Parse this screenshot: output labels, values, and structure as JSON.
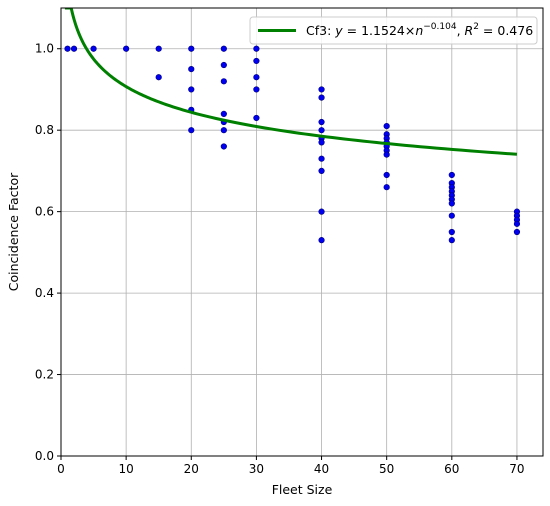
{
  "chart_data": {
    "type": "scatter",
    "xlabel": "Fleet Size",
    "ylabel": "Coincidence Factor",
    "xlim": [
      0,
      74
    ],
    "ylim": [
      0,
      1.1
    ],
    "x_ticks": [
      0,
      10,
      20,
      30,
      40,
      50,
      60,
      70
    ],
    "y_ticks": [
      0.0,
      0.2,
      0.4,
      0.6,
      0.8,
      1.0
    ],
    "x_tick_labels": [
      "0",
      "10",
      "20",
      "30",
      "40",
      "50",
      "60",
      "70"
    ],
    "y_tick_labels": [
      "0.0",
      "0.2",
      "0.4",
      "0.6",
      "0.8",
      "1.0"
    ],
    "grid": true,
    "legend_position": "top-right",
    "colors": {
      "points": "#0000ee",
      "points_edge": "#000080",
      "fit": "#008000",
      "grid": "#b0b0b0"
    },
    "series": [
      {
        "type": "scatter",
        "points": [
          [
            1,
            1.0
          ],
          [
            2,
            1.0
          ],
          [
            5,
            1.0
          ],
          [
            10,
            1.0
          ],
          [
            15,
            1.0
          ],
          [
            15,
            0.93
          ],
          [
            20,
            1.0
          ],
          [
            20,
            0.95
          ],
          [
            20,
            0.9
          ],
          [
            20,
            0.85
          ],
          [
            20,
            0.8
          ],
          [
            25,
            1.0
          ],
          [
            25,
            0.96
          ],
          [
            25,
            0.92
          ],
          [
            25,
            0.84
          ],
          [
            25,
            0.82
          ],
          [
            25,
            0.8
          ],
          [
            25,
            0.76
          ],
          [
            30,
            1.0
          ],
          [
            30,
            0.97
          ],
          [
            30,
            0.93
          ],
          [
            30,
            0.9
          ],
          [
            30,
            0.83
          ],
          [
            40,
            0.9
          ],
          [
            40,
            0.88
          ],
          [
            40,
            0.82
          ],
          [
            40,
            0.8
          ],
          [
            40,
            0.78
          ],
          [
            40,
            0.77
          ],
          [
            40,
            0.73
          ],
          [
            40,
            0.7
          ],
          [
            40,
            0.6
          ],
          [
            40,
            0.53
          ],
          [
            50,
            0.81
          ],
          [
            50,
            0.79
          ],
          [
            50,
            0.78
          ],
          [
            50,
            0.77
          ],
          [
            50,
            0.76
          ],
          [
            50,
            0.75
          ],
          [
            50,
            0.74
          ],
          [
            50,
            0.69
          ],
          [
            50,
            0.66
          ],
          [
            60,
            0.69
          ],
          [
            60,
            0.67
          ],
          [
            60,
            0.66
          ],
          [
            60,
            0.65
          ],
          [
            60,
            0.64
          ],
          [
            60,
            0.63
          ],
          [
            60,
            0.62
          ],
          [
            60,
            0.59
          ],
          [
            60,
            0.55
          ],
          [
            60,
            0.53
          ],
          [
            70,
            0.6
          ],
          [
            70,
            0.59
          ],
          [
            70,
            0.58
          ],
          [
            70,
            0.57
          ],
          [
            70,
            0.55
          ]
        ]
      },
      {
        "type": "line",
        "name": "Cf3",
        "formula": {
          "a": 1.1524,
          "b": -0.104
        },
        "x_range": [
          0.6,
          70
        ],
        "legend": {
          "prefix": "Cf3: ",
          "y": "y",
          "eq": " = 1.1524×",
          "n": "n",
          "exp": "−0.104",
          "sep": ", ",
          "R": "R",
          "r2sup": "2",
          "r2val": " = 0.476"
        }
      }
    ]
  }
}
